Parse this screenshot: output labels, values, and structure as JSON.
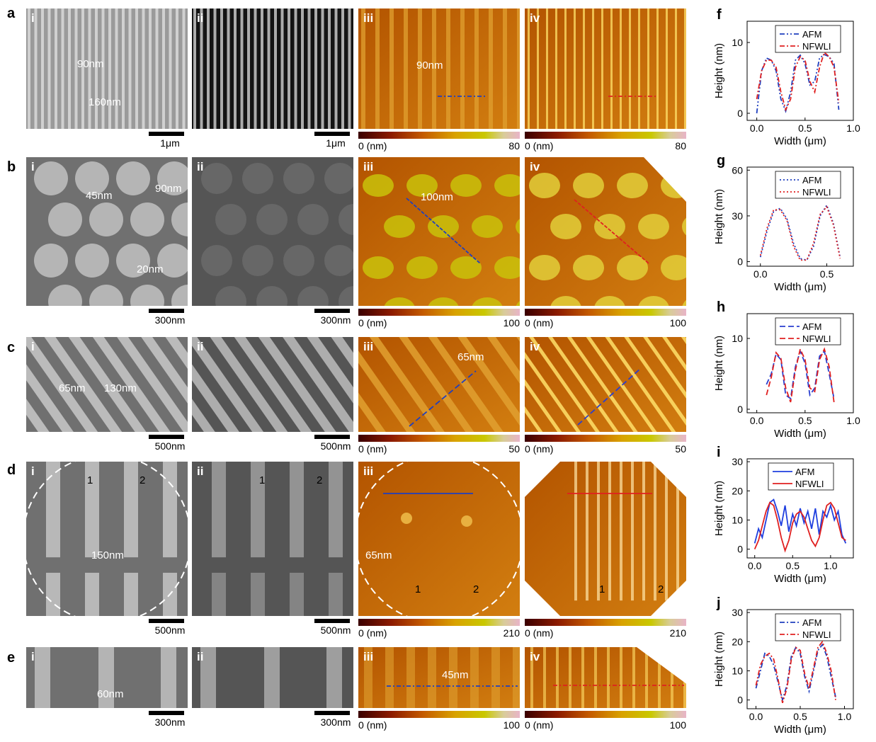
{
  "rows": [
    {
      "letter": "a",
      "panels": [
        "i",
        "ii",
        "iii",
        "iv"
      ],
      "scale_sem": "1μm",
      "scale_opt": "1μm",
      "cbar_min": "0 (nm)",
      "cbar_max_iii": "80",
      "cbar_max_iv": "80",
      "ann_i": [
        "90nm",
        "160nm"
      ],
      "ann_iii": [
        "90nm"
      ]
    },
    {
      "letter": "b",
      "panels": [
        "i",
        "ii",
        "iii",
        "iv"
      ],
      "scale_sem": "300nm",
      "scale_opt": "300nm",
      "cbar_min": "0 (nm)",
      "cbar_max_iii": "100",
      "cbar_max_iv": "100",
      "ann_i": [
        "45nm",
        "90nm",
        "20nm"
      ],
      "ann_iii": [
        "100nm"
      ]
    },
    {
      "letter": "c",
      "panels": [
        "i",
        "ii",
        "iii",
        "iv"
      ],
      "scale_sem": "500nm",
      "scale_opt": "500nm",
      "cbar_min": "0 (nm)",
      "cbar_max_iii": "50",
      "cbar_max_iv": "50",
      "ann_i": [
        "65nm",
        "130nm"
      ],
      "ann_iii": [
        "65nm"
      ]
    },
    {
      "letter": "d",
      "panels": [
        "i",
        "ii",
        "iii",
        ""
      ],
      "scale_sem": "500nm",
      "scale_opt": "500nm",
      "cbar_min": "0 (nm)",
      "cbar_max_iii": "210",
      "cbar_max_iv": "210",
      "ann_i": [
        "1",
        "2",
        "150nm"
      ],
      "ann_ii": [
        "1",
        "2"
      ],
      "ann_iii": [
        "65nm",
        "1",
        "2"
      ],
      "ann_iv": [
        "1",
        "2"
      ]
    },
    {
      "letter": "e",
      "panels": [
        "i",
        "ii",
        "iii",
        "iv"
      ],
      "scale_sem": "300nm",
      "scale_opt": "300nm",
      "cbar_min": "0 (nm)",
      "cbar_max_iii": "100",
      "cbar_max_iv": "100",
      "ann_i": [
        "60nm"
      ],
      "ann_iii": [
        "45nm"
      ]
    }
  ],
  "chart_data": [
    {
      "panel": "f",
      "type": "line",
      "xlabel": "Width (μm)",
      "ylabel": "Height (nm)",
      "xlim": [
        -0.1,
        1.0
      ],
      "ylim": [
        -1,
        13
      ],
      "xticks": [
        "0.0",
        "0.5",
        "1.0"
      ],
      "yticks": [
        "0",
        "10"
      ],
      "legend_placement": "top-right",
      "series": [
        {
          "name": "AFM",
          "color": "#1f3fbf",
          "dash": "7,3,2,3,2,3",
          "x": [
            0.0,
            0.05,
            0.1,
            0.15,
            0.2,
            0.25,
            0.3,
            0.35,
            0.4,
            0.45,
            0.5,
            0.55,
            0.6,
            0.65,
            0.7,
            0.75,
            0.8,
            0.85
          ],
          "y": [
            0,
            6,
            7.8,
            7.5,
            6,
            2,
            0.3,
            3,
            7.5,
            8.2,
            7,
            4,
            4.5,
            7.8,
            8.3,
            8,
            7,
            0.5
          ]
        },
        {
          "name": "NFWLI",
          "color": "#e02020",
          "dash": "7,3,2,3",
          "x": [
            0.0,
            0.05,
            0.1,
            0.15,
            0.2,
            0.25,
            0.3,
            0.35,
            0.4,
            0.45,
            0.5,
            0.55,
            0.6,
            0.65,
            0.7,
            0.75,
            0.8,
            0.85
          ],
          "y": [
            2,
            6,
            7.5,
            7.5,
            6.5,
            3,
            0.5,
            2,
            6.5,
            8,
            7.5,
            4.5,
            3,
            6.5,
            8.6,
            8,
            6.5,
            1.5
          ]
        }
      ]
    },
    {
      "panel": "g",
      "type": "line",
      "xlabel": "Width (μm)",
      "ylabel": "Height (nm)",
      "xlim": [
        -0.1,
        0.7
      ],
      "ylim": [
        -3,
        62
      ],
      "xticks": [
        "0.0",
        "0.5"
      ],
      "yticks": [
        "0",
        "30",
        "60"
      ],
      "legend_placement": "top-right",
      "series": [
        {
          "name": "AFM",
          "color": "#1f3fbf",
          "dash": "2,3",
          "x": [
            0.0,
            0.05,
            0.1,
            0.15,
            0.2,
            0.25,
            0.3,
            0.35,
            0.4,
            0.45,
            0.5,
            0.55,
            0.6
          ],
          "y": [
            3,
            20,
            33,
            35,
            28,
            12,
            2,
            1,
            10,
            30,
            37,
            25,
            3
          ]
        },
        {
          "name": "NFWLI",
          "color": "#e02020",
          "dash": "2,3",
          "x": [
            0.0,
            0.05,
            0.1,
            0.15,
            0.2,
            0.25,
            0.3,
            0.35,
            0.4,
            0.45,
            0.5,
            0.55,
            0.6
          ],
          "y": [
            4,
            22,
            34,
            34,
            27,
            10,
            1,
            1,
            12,
            31,
            36,
            24,
            2
          ]
        }
      ]
    },
    {
      "panel": "h",
      "type": "line",
      "xlabel": "Width (μm)",
      "ylabel": "Height (nm)",
      "xlim": [
        -0.1,
        1.0
      ],
      "ylim": [
        -0.5,
        13.5
      ],
      "xticks": [
        "0.0",
        "0.5",
        "1.0"
      ],
      "yticks": [
        "0",
        "10"
      ],
      "legend_placement": "top-right",
      "series": [
        {
          "name": "AFM",
          "color": "#2a3fcf",
          "dash": "8,4",
          "x": [
            0.1,
            0.15,
            0.2,
            0.25,
            0.3,
            0.35,
            0.4,
            0.45,
            0.5,
            0.55,
            0.6,
            0.65,
            0.7,
            0.75,
            0.8
          ],
          "y": [
            3.5,
            5,
            7.8,
            7,
            2,
            1.5,
            6,
            8.2,
            6.5,
            2,
            3,
            7.5,
            8.2,
            5,
            1.5
          ]
        },
        {
          "name": "NFWLI",
          "color": "#e02020",
          "dash": "8,4",
          "x": [
            0.1,
            0.15,
            0.2,
            0.25,
            0.3,
            0.35,
            0.4,
            0.45,
            0.5,
            0.55,
            0.6,
            0.65,
            0.7,
            0.75,
            0.8
          ],
          "y": [
            2,
            4.5,
            8,
            7.2,
            3,
            1,
            5.5,
            8.5,
            7,
            3,
            2.5,
            7,
            8.5,
            6,
            1
          ]
        }
      ]
    },
    {
      "panel": "i",
      "type": "line",
      "xlabel": "Width (μm)",
      "ylabel": "Height (nm)",
      "xlim": [
        -0.1,
        1.3
      ],
      "ylim": [
        -3,
        31
      ],
      "xticks": [
        "0.0",
        "0.5",
        "1.0"
      ],
      "yticks": [
        "0",
        "10",
        "20",
        "30"
      ],
      "legend_placement": "top-center",
      "series": [
        {
          "name": "AFM",
          "color": "#1f3fdf",
          "dash": "",
          "x": [
            0.0,
            0.05,
            0.1,
            0.15,
            0.2,
            0.25,
            0.3,
            0.35,
            0.4,
            0.45,
            0.5,
            0.55,
            0.6,
            0.65,
            0.7,
            0.75,
            0.8,
            0.85,
            0.9,
            0.95,
            1.0,
            1.05,
            1.1,
            1.15,
            1.2
          ],
          "y": [
            2,
            7,
            4,
            10,
            16,
            17,
            13,
            8,
            15,
            6,
            12,
            8,
            14,
            9,
            13,
            7,
            14,
            5,
            13,
            11,
            15,
            10,
            13,
            5,
            2
          ]
        },
        {
          "name": "NFWLI",
          "color": "#e02020",
          "dash": "",
          "x": [
            0.0,
            0.05,
            0.1,
            0.15,
            0.2,
            0.25,
            0.3,
            0.35,
            0.4,
            0.45,
            0.5,
            0.55,
            0.6,
            0.65,
            0.7,
            0.75,
            0.8,
            0.85,
            0.9,
            0.95,
            1.0,
            1.05,
            1.1,
            1.15,
            1.2
          ],
          "y": [
            0,
            3,
            8,
            13,
            16,
            15,
            10,
            4,
            -0.5,
            3,
            9,
            12,
            13,
            11,
            7,
            3,
            1,
            4,
            10,
            15,
            16,
            14,
            9,
            4,
            3
          ]
        }
      ]
    },
    {
      "panel": "j",
      "type": "line",
      "xlabel": "Width (μm)",
      "ylabel": "Height (nm)",
      "xlim": [
        -0.1,
        1.1
      ],
      "ylim": [
        -3,
        31
      ],
      "xticks": [
        "0.0",
        "0.5",
        "1.0"
      ],
      "yticks": [
        "0",
        "10",
        "20",
        "30"
      ],
      "legend_placement": "top-right",
      "series": [
        {
          "name": "AFM",
          "color": "#1f3fbf",
          "dash": "7,3,2,3",
          "x": [
            0.0,
            0.05,
            0.1,
            0.15,
            0.2,
            0.25,
            0.3,
            0.35,
            0.4,
            0.45,
            0.5,
            0.55,
            0.6,
            0.65,
            0.7,
            0.75,
            0.8,
            0.85,
            0.9
          ],
          "y": [
            4,
            10,
            16,
            15,
            12,
            6,
            0,
            5,
            15,
            18,
            16,
            8,
            3,
            10,
            17,
            19,
            15,
            8,
            1
          ]
        },
        {
          "name": "NFWLI",
          "color": "#e02020",
          "dash": "7,3,2,3",
          "x": [
            0.0,
            0.05,
            0.1,
            0.15,
            0.2,
            0.25,
            0.3,
            0.35,
            0.4,
            0.45,
            0.5,
            0.55,
            0.6,
            0.65,
            0.7,
            0.75,
            0.8,
            0.85,
            0.9
          ],
          "y": [
            5,
            12,
            15,
            16,
            14,
            7,
            -1,
            4,
            14,
            18,
            17,
            9,
            4,
            11,
            18,
            20,
            16,
            10,
            0
          ]
        }
      ]
    }
  ]
}
